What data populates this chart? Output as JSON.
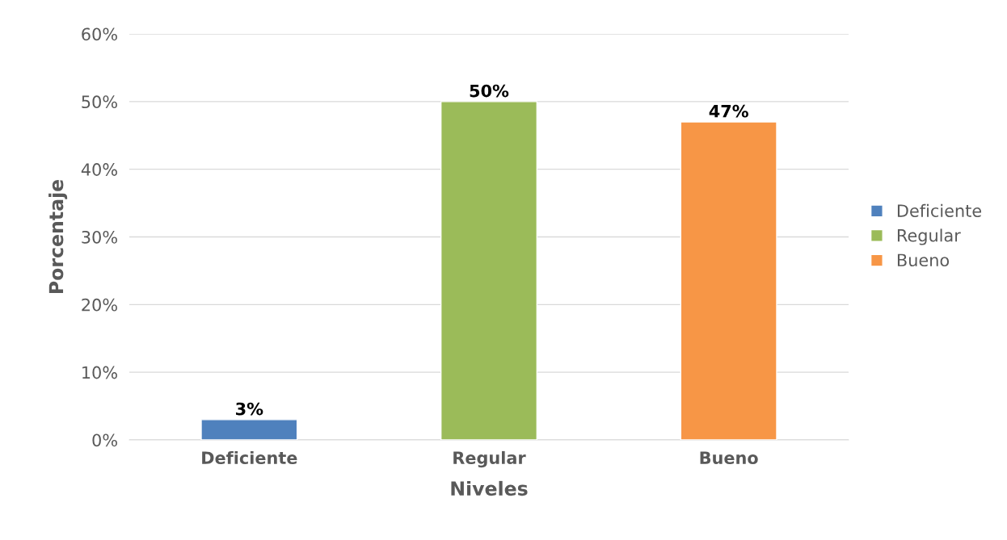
{
  "chart_data": {
    "type": "bar",
    "xlabel": "Niveles",
    "ylabel": "Porcentaje",
    "categories": [
      "Deficiente",
      "Regular",
      "Bueno"
    ],
    "series": [
      {
        "name": "Deficiente",
        "color": "#4f81bd",
        "values": [
          3,
          null,
          null
        ],
        "value_labels": [
          "3%",
          null,
          null
        ]
      },
      {
        "name": "Regular",
        "color": "#9bbb59",
        "values": [
          null,
          50,
          null
        ],
        "value_labels": [
          null,
          "50%",
          null
        ]
      },
      {
        "name": "Bueno",
        "color": "#f79646",
        "values": [
          null,
          null,
          47
        ],
        "value_labels": [
          null,
          null,
          "47%"
        ]
      }
    ],
    "ylim": [
      0,
      60
    ],
    "yticks": [
      {
        "value": 0,
        "label": "0%"
      },
      {
        "value": 10,
        "label": "10%"
      },
      {
        "value": 20,
        "label": "20%"
      },
      {
        "value": 30,
        "label": "30%"
      },
      {
        "value": 40,
        "label": "40%"
      },
      {
        "value": 50,
        "label": "50%"
      },
      {
        "value": 60,
        "label": "60%"
      }
    ],
    "grid": "y",
    "legend": "right"
  }
}
